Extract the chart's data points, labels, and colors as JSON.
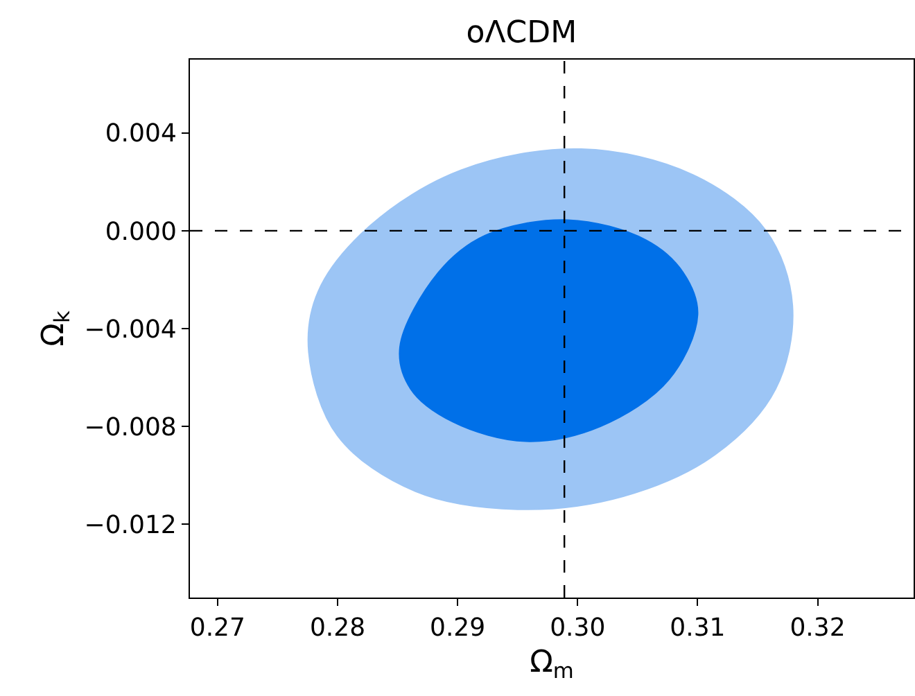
{
  "chart_data": {
    "type": "area",
    "title": "oΛCDM",
    "xlabel": "Ω$_{m}$",
    "ylabel": "Ω$_{k}$",
    "xlim": [
      0.2677,
      0.328
    ],
    "xticks": [
      {
        "value": 0.27,
        "label": "0.27"
      },
      {
        "value": 0.28,
        "label": "0.28"
      },
      {
        "value": 0.29,
        "label": "0.29"
      },
      {
        "value": 0.3,
        "label": "0.30"
      },
      {
        "value": 0.31,
        "label": "0.31"
      },
      {
        "value": 0.32,
        "label": "0.32"
      }
    ],
    "ylim": [
      -0.015,
      0.007
    ],
    "yticks": [
      {
        "value": 0.004,
        "label": "0.004"
      },
      {
        "value": 0,
        "label": "0.000"
      },
      {
        "value": -0.004,
        "label": "−0.004"
      },
      {
        "value": -0.008,
        "label": "−0.008"
      },
      {
        "value": -0.012,
        "label": "−0.012"
      }
    ],
    "grid": false,
    "series": [
      {
        "color": "#9cc5f5",
        "x": [
          0.2776,
          0.2784,
          0.2827,
          0.2903,
          0.3003,
          0.3096,
          0.3157,
          0.3179,
          0.3165,
          0.3115,
          0.3038,
          0.295,
          0.2865,
          0.28,
          0.2776
        ],
        "values": [
          -0.00495,
          -0.00247,
          0.0002,
          0.00248,
          0.00334,
          0.00229,
          0.0,
          -0.00305,
          -0.00647,
          -0.00914,
          -0.01086,
          -0.01139,
          -0.01066,
          -0.00838,
          -0.00495
        ]
      },
      {
        "color": "#0070e8",
        "x": [
          0.2852,
          0.2884,
          0.2923,
          0.2992,
          0.3057,
          0.3088,
          0.31,
          0.3076,
          0.3019,
          0.2957,
          0.2896,
          0.2861,
          0.2852
        ],
        "values": [
          -0.00476,
          -0.00171,
          -0.00019,
          0.00044,
          -0.00038,
          -0.00171,
          -0.00343,
          -0.00609,
          -0.008,
          -0.00861,
          -0.00781,
          -0.00647,
          -0.00476
        ]
      }
    ],
    "ref_lines": [
      {
        "axis": "x",
        "value": 0.2989,
        "color": "#000000",
        "line_style": "dashed"
      },
      {
        "axis": "y",
        "value": 0,
        "color": "#000000",
        "line_style": "dashed"
      }
    ]
  }
}
